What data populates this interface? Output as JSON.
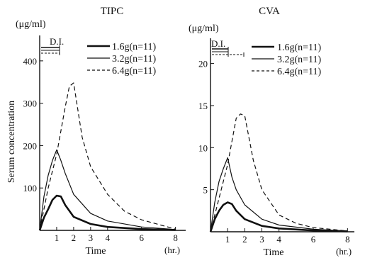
{
  "shared": {
    "ylabel": "Serum concentration",
    "legend": [
      "1.6g(n=11)",
      "3.2g(n=11)",
      "6.4g(n=11)"
    ],
    "di_label": "D.I.",
    "hr_label": "(hr.)",
    "ink": "#111111"
  },
  "chart_data": [
    {
      "type": "line",
      "title": "TIPC",
      "unit": "(μg/ml)",
      "xlabel": "Time",
      "xlim": [
        0,
        8.6
      ],
      "ylim": [
        0,
        460
      ],
      "x_ticks": [
        1,
        2,
        3,
        4,
        6,
        8
      ],
      "y_ticks": [
        100,
        200,
        300,
        400
      ],
      "series": [
        {
          "name": "1.6g(n=11)",
          "dash": "solid",
          "width": 2.6,
          "x": [
            0,
            0.25,
            0.5,
            0.75,
            1.0,
            1.25,
            1.5,
            2.0,
            3.0,
            4.0,
            6.0,
            8.0
          ],
          "y": [
            0,
            30,
            50,
            72,
            82,
            80,
            60,
            32,
            15,
            8,
            3,
            1
          ]
        },
        {
          "name": "3.2g(n=11)",
          "dash": "solid",
          "width": 1.2,
          "x": [
            0,
            0.25,
            0.5,
            0.75,
            1.0,
            1.25,
            1.5,
            2.0,
            3.0,
            4.0,
            6.0,
            8.0
          ],
          "y": [
            0,
            80,
            130,
            165,
            190,
            165,
            135,
            85,
            40,
            22,
            8,
            2
          ]
        },
        {
          "name": "6.4g(n=11)",
          "dash": "dashed",
          "width": 1.2,
          "x": [
            0,
            0.5,
            1.0,
            1.5,
            1.75,
            2.0,
            2.5,
            3.0,
            4.0,
            5.0,
            6.0,
            8.0
          ],
          "y": [
            0,
            100,
            180,
            290,
            340,
            348,
            220,
            150,
            85,
            45,
            25,
            3
          ]
        }
      ]
    },
    {
      "type": "line",
      "title": "CVA",
      "unit": "(μg/ml)",
      "xlabel": "Time",
      "xlim": [
        0,
        8.4
      ],
      "ylim": [
        0,
        23
      ],
      "x_ticks": [
        1,
        2,
        3,
        4,
        6,
        8
      ],
      "y_ticks": [
        5,
        10,
        15,
        20
      ],
      "series": [
        {
          "name": "1.6g(n=11)",
          "dash": "solid",
          "width": 2.6,
          "x": [
            0,
            0.25,
            0.5,
            0.75,
            1.0,
            1.25,
            1.5,
            2.0,
            3.0,
            4.0,
            6.0,
            8.0
          ],
          "y": [
            0,
            1.5,
            2.5,
            3.2,
            3.5,
            3.3,
            2.5,
            1.5,
            0.7,
            0.4,
            0.15,
            0.05
          ]
        },
        {
          "name": "3.2g(n=11)",
          "dash": "solid",
          "width": 1.2,
          "x": [
            0,
            0.25,
            0.5,
            0.75,
            1.0,
            1.25,
            1.5,
            2.0,
            3.0,
            4.0,
            6.0,
            8.0
          ],
          "y": [
            0,
            3.5,
            6.0,
            7.5,
            8.8,
            6.5,
            5.0,
            3.2,
            1.5,
            0.8,
            0.3,
            0.1
          ]
        },
        {
          "name": "6.4g(n=11)",
          "dash": "dashed",
          "width": 1.2,
          "x": [
            0,
            0.5,
            1.0,
            1.5,
            1.75,
            2.0,
            2.5,
            3.0,
            4.0,
            5.0,
            6.0,
            8.0
          ],
          "y": [
            0,
            4.0,
            8.0,
            13.5,
            14.0,
            13.8,
            8.5,
            5.0,
            2.0,
            1.0,
            0.5,
            0.1
          ]
        }
      ]
    }
  ]
}
